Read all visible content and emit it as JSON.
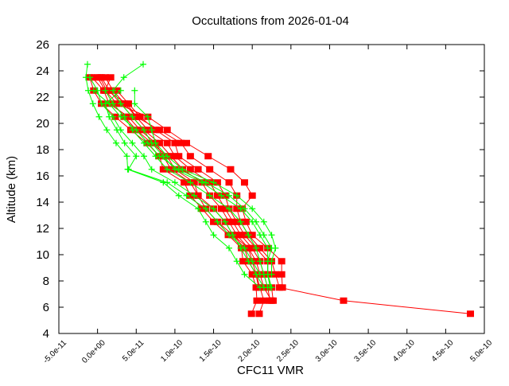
{
  "chart_data": {
    "type": "line",
    "title": "Occultations from 2026-01-04",
    "xlabel": "CFC11 VMR",
    "ylabel": "Altitude (km)",
    "xlim": [
      -5e-11,
      5e-10
    ],
    "ylim": [
      4,
      26
    ],
    "grid": false,
    "xticks": [
      -5e-11,
      0,
      5e-11,
      1e-10,
      1.5e-10,
      2e-10,
      2.5e-10,
      3e-10,
      3.5e-10,
      4e-10,
      4.5e-10,
      5e-10
    ],
    "xtick_labels": [
      "-5.0e-11",
      "0.0e+00",
      "5.0e-11",
      "1.0e-10",
      "1.5e-10",
      "2.0e-10",
      "2.5e-10",
      "3.0e-10",
      "3.5e-10",
      "4.0e-10",
      "4.5e-10",
      "5.0e-10"
    ],
    "yticks": [
      4,
      6,
      8,
      10,
      12,
      14,
      16,
      18,
      20,
      22,
      24,
      26
    ],
    "ytick_labels": [
      "4",
      "6",
      "8",
      "10",
      "12",
      "14",
      "16",
      "18",
      "20",
      "22",
      "24",
      "26"
    ],
    "colors": {
      "red_series": "#ff0000",
      "green_series": "#00ff00"
    },
    "red_profiles": {
      "marker": "square",
      "altitudes": [
        23.5,
        22.5,
        21.5,
        20.5,
        19.5,
        18.5,
        17.5,
        16.5,
        15.5,
        14.5,
        13.5,
        12.5,
        11.5,
        10.5,
        9.5,
        8.5,
        7.5,
        6.5,
        5.5
      ],
      "profiles": [
        [
          -1e-11,
          -5e-12,
          5e-12,
          2.3e-11,
          4.3e-11,
          6.4e-11,
          8e-11,
          8.5e-11,
          1.12e-10,
          1.2e-10,
          1.35e-10,
          1.5e-10,
          1.69e-10,
          1.86e-10,
          1.88e-10,
          2e-10,
          2.05e-10,
          2.06e-10,
          1.99e-10
        ],
        [
          0,
          1e-11,
          2e-11,
          3.5e-11,
          5e-11,
          7e-11,
          9e-11,
          1e-10,
          1.25e-10,
          1.3e-10,
          1.5e-10,
          1.65e-10,
          1.75e-10,
          1.9e-10,
          1.95e-10,
          2.05e-10,
          2.1e-10,
          2.15e-10,
          2.09e-10
        ],
        [
          5e-12,
          1.5e-11,
          3e-11,
          4.5e-11,
          6e-11,
          8e-11,
          9.5e-11,
          1.1e-10,
          1.35e-10,
          1.45e-10,
          1.6e-10,
          1.7e-10,
          1.8e-10,
          1.95e-10,
          2.05e-10,
          2.1e-10,
          2.15e-10,
          2.25e-10,
          null
        ],
        [
          1e-11,
          2e-11,
          3.5e-11,
          5e-11,
          6.5e-11,
          9e-11,
          1e-10,
          1.2e-10,
          1.45e-10,
          1.55e-10,
          1.65e-10,
          1.75e-10,
          1.85e-10,
          2e-10,
          2.1e-10,
          2.15e-10,
          2.2e-10,
          2.23e-10,
          null
        ],
        [
          null,
          2.5e-11,
          4e-11,
          5.5e-11,
          7.5e-11,
          1e-10,
          1.05e-10,
          1.3e-10,
          1.55e-10,
          1.65e-10,
          1.7e-10,
          1.8e-10,
          1.9e-10,
          2.05e-10,
          2.2e-10,
          2.2e-10,
          2.25e-10,
          2.27e-10,
          null
        ],
        [
          1.7e-11,
          1e-11,
          2.5e-11,
          6.5e-11,
          9e-11,
          1.15e-10,
          1.43e-10,
          1.72e-10,
          1.9e-10,
          2e-10,
          1.87e-10,
          1.92e-10,
          2e-10,
          2.2e-10,
          2.38e-10,
          2.38e-10,
          2.39e-10,
          null,
          null
        ],
        [
          3e-12,
          1.2e-11,
          3.8e-11,
          5e-11,
          8e-11,
          1.08e-10,
          1.2e-10,
          1.45e-10,
          1.7e-10,
          1.8e-10,
          1.8e-10,
          1.85e-10,
          1.95e-10,
          2.1e-10,
          2.25e-10,
          2.3e-10,
          2.35e-10,
          3.18e-10,
          4.82e-10
        ],
        [
          -7e-12,
          8e-12,
          1.5e-11,
          4e-11,
          5.5e-11,
          7.5e-11,
          8.5e-11,
          9.5e-11,
          1.2e-10,
          1.3e-10,
          1.4e-10,
          1.55e-10,
          1.75e-10,
          1.95e-10,
          2e-10,
          2.05e-10,
          2.08e-10,
          null,
          null
        ]
      ]
    },
    "green_profiles": {
      "marker": "plus",
      "altitudes": [
        24.5,
        23.5,
        22.5,
        21.5,
        20.5,
        19.5,
        18.5,
        17.5,
        16.5,
        15.5,
        14.5,
        13.5,
        12.5,
        11.5,
        10.5,
        9.5,
        8.5,
        7.5
      ],
      "profiles": [
        [
          -1.3e-11,
          -1.5e-11,
          -1.2e-11,
          -6e-12,
          2e-12,
          1.2e-11,
          2.4e-11,
          3.8e-11,
          3.9e-11,
          8.5e-11,
          1.05e-10,
          1.3e-10,
          1.4e-10,
          1.5e-10,
          1.7e-10,
          1.8e-10,
          1.9e-10,
          2.1e-10
        ],
        [
          null,
          -1e-11,
          0,
          5e-12,
          2e-11,
          3e-11,
          4.5e-11,
          6e-11,
          7e-11,
          1e-10,
          1.25e-10,
          1.5e-10,
          1.65e-10,
          1.75e-10,
          1.85e-10,
          1.95e-10,
          2.05e-10,
          2.15e-10
        ],
        [
          null,
          null,
          1e-11,
          2e-11,
          3.5e-11,
          4.5e-11,
          6e-11,
          7.5e-11,
          9e-11,
          1.2e-10,
          1.45e-10,
          1.7e-10,
          1.85e-10,
          1.95e-10,
          2.05e-10,
          2.1e-10,
          2.15e-10,
          2.2e-10
        ],
        [
          5.9e-11,
          3.4e-11,
          2e-11,
          3e-11,
          4.5e-11,
          6e-11,
          7e-11,
          8.5e-11,
          1e-10,
          1.35e-10,
          1.6e-10,
          1.85e-10,
          2e-10,
          2.1e-10,
          2.2e-10,
          2.2e-10,
          2.2e-10,
          2.25e-10
        ],
        [
          null,
          null,
          4.8e-11,
          4.8e-11,
          6.5e-11,
          7e-11,
          7.5e-11,
          9e-11,
          1.1e-10,
          1.5e-10,
          1.8e-10,
          2e-10,
          2.15e-10,
          2.25e-10,
          2.3e-10,
          2.25e-10,
          2.25e-10,
          null
        ],
        [
          null,
          null,
          3e-11,
          1e-11,
          1.5e-11,
          2.5e-11,
          3.5e-11,
          5e-11,
          4e-11,
          9e-11,
          1.15e-10,
          1.4e-10,
          1.55e-10,
          1.7e-10,
          1.9e-10,
          2e-10,
          2.1e-10,
          null
        ],
        [
          null,
          null,
          -5e-12,
          1.5e-11,
          3e-11,
          5e-11,
          6.5e-11,
          8e-11,
          1.05e-10,
          1.4e-10,
          1.7e-10,
          1.9e-10,
          2.05e-10,
          2.15e-10,
          2.25e-10,
          2.2e-10,
          2.2e-10,
          2.23e-10
        ]
      ]
    }
  }
}
